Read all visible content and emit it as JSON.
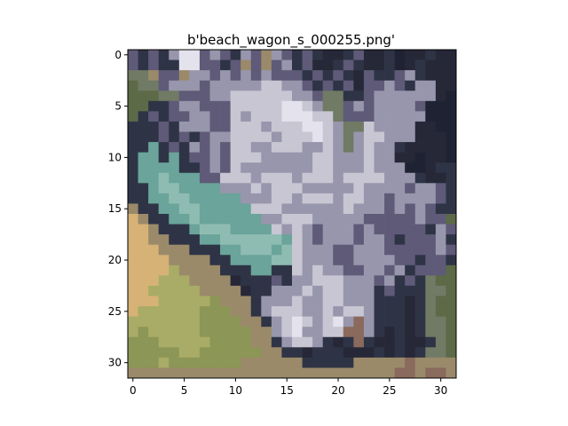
{
  "chart_data": {
    "type": "heatmap",
    "title": "b'beach_wagon_s_000255.png'",
    "xlabel": "",
    "ylabel": "",
    "xlim": [
      -0.5,
      31.5
    ],
    "ylim": [
      31.5,
      -0.5
    ],
    "x_ticks": [
      0,
      5,
      10,
      15,
      20,
      25,
      30
    ],
    "y_ticks": [
      0,
      5,
      10,
      15,
      20,
      25,
      30
    ],
    "grid": false,
    "image_size": [
      32,
      32
    ],
    "palette": {
      "d": "#2e3446",
      "n": "#1e2232",
      "g": "#707a64",
      "o": "#5c6a48",
      "l": "#c8c6d2",
      "w": "#e4e2ec",
      "m": "#9896ac",
      "p": "#5e5a78",
      "c": "#6aa49a",
      "t": "#8fbcb2",
      "s": "#d6b276",
      "y": "#a8ac66",
      "e": "#8c9656",
      "b": "#9a8a6a",
      "r": "#8a6a5c",
      "k": "#262838"
    },
    "pixel_rows": [
      "pdpdmwwpmpdmpbmpdpdkkdpkkdnkkdkk",
      "pdpddwwppdpbpbpmdpkkdpdkkdnkdkkk",
      "ggbppbmmpmpmpmpppdpdpdkpddpmdkkk",
      "oggpmmmpmmmmmllmmpdpdpkppmpdmmkk",
      "oooggpppmmllllllmmpggddpmmmmmmkn",
      "ooddpmmppplllllwwlmggpmpmmmmpnnn",
      "odpdppmmpplmlllwwwllgpppmmmmmnnn",
      "dddpdmmmpplllmlllwwlmgglmmmmkknn",
      "dddpdpdpmmllllmlllwlmgmllmmmkkkn",
      "ddcdpdmpmpllmmlllmmlmgmlmmdkkkkn",
      "dccdcdppmplllmmmmmllmmmlmmkknkkn",
      "dccccddpmplmmmmmmmllmmmlmmmnnkdd",
      "dcctcccpplllmlllmlllmllllmmmdkkd",
      "ddcttccccmmmlmlllmmmmmlmmmmpmmpd",
      "ddccttcccccmmmllmlllmllmmpmmmmpd",
      "bddccttccccclllmmmmmmlmmmpmpmpdd",
      "sbddcctccccccmmlllmmmmmpppppmppo",
      "ssbdddctttcccclmlmpmmmpmpppppdmp",
      "ssbbdddccttttttclmpmmmpmmpdpppmd",
      "sssbbbdddcctttctlmmmppmmmpppppmp",
      "ssssbbbbddccccttlmmmppmmmmppdppd",
      "ssssybbbbdddccddlmlmmppmmpmdpppo",
      "sssyyybbbbkdddpdmmlllmmmpmdpdgoo",
      "ssyyyyybbbbkddmmmlmllmmmdpdddggo",
      "sssyyyyyebbbdmmmlmmllmmmdddkdgoo",
      "syyyyyyeeebbdmlllmmlmllmdddkdgoo",
      "yyyyyyyeeeebbdmlwlmlwmrmdddkdggo",
      "yeyyyyyeeeeebbmlwmmllrrmdkdkdggo",
      "eeeyyyyyeeeebbdmllmdkdrdkkdkkdgo",
      "eeeeeyyeeeeeebbddkdddkkkdkdkdggo",
      "eeeyeeeeeeebbbbbbdddddbbbbbrbbbb",
      "bbbbbbbbbbbbbbbbbbbbbbbbbbrrbrrb"
    ]
  }
}
